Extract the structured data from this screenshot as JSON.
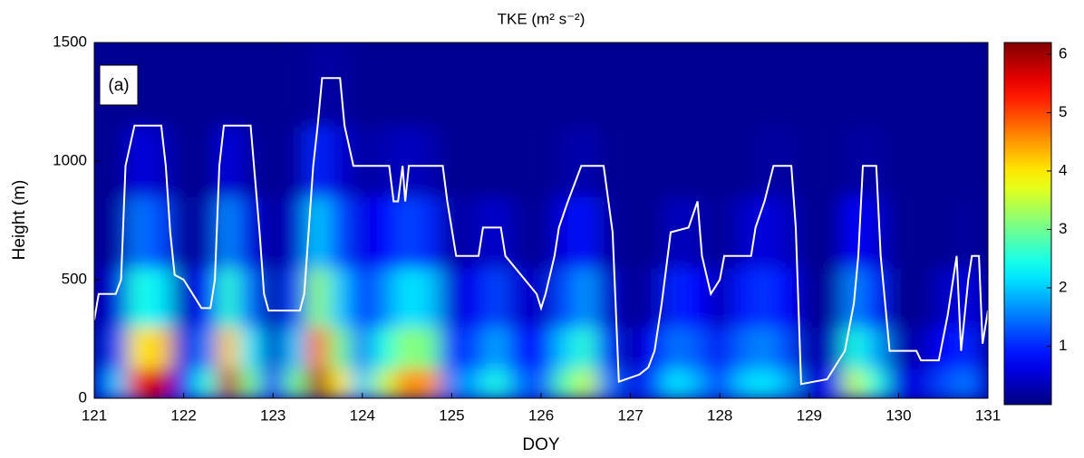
{
  "chart_data": {
    "type": "heatmap",
    "title": "TKE (m² s⁻²)",
    "xlabel": "DOY",
    "ylabel": "Height (m)",
    "annotation": "(a)",
    "colormap": "jet",
    "xlim": [
      121,
      131
    ],
    "ylim": [
      0,
      1500
    ],
    "xticks": [
      121,
      122,
      123,
      124,
      125,
      126,
      127,
      128,
      129,
      130,
      131
    ],
    "yticks": [
      0,
      500,
      1000,
      1500
    ],
    "clim": [
      0,
      6.2
    ],
    "cticks": [
      1,
      2,
      3,
      4,
      5,
      6
    ],
    "x": [
      121.0,
      121.25,
      121.5,
      121.75,
      122.0,
      122.25,
      122.5,
      122.75,
      123.0,
      123.25,
      123.5,
      123.75,
      124.0,
      124.25,
      124.5,
      124.75,
      125.0,
      125.25,
      125.5,
      125.75,
      126.0,
      126.25,
      126.5,
      126.75,
      127.0,
      127.25,
      127.5,
      127.75,
      128.0,
      128.25,
      128.5,
      128.75,
      129.0,
      129.25,
      129.5,
      129.75,
      130.0,
      130.25,
      130.5,
      130.75,
      131.0
    ],
    "y": [
      50,
      200,
      400,
      700,
      1000,
      1300
    ],
    "z": [
      [
        0.8,
        0.3,
        0.2,
        0.1,
        0.1,
        0.1
      ],
      [
        2.0,
        1.2,
        0.6,
        0.2,
        0.1,
        0.1
      ],
      [
        5.5,
        4.0,
        2.5,
        1.5,
        0.6,
        0.1
      ],
      [
        5.8,
        4.2,
        2.2,
        1.2,
        0.4,
        0.1
      ],
      [
        1.0,
        0.6,
        0.3,
        0.1,
        0.1,
        0.1
      ],
      [
        2.5,
        1.5,
        0.8,
        0.3,
        0.1,
        0.1
      ],
      [
        5.8,
        4.2,
        2.6,
        1.6,
        0.6,
        0.1
      ],
      [
        3.0,
        2.2,
        1.4,
        0.6,
        0.2,
        0.1
      ],
      [
        0.8,
        0.4,
        0.2,
        0.1,
        0.1,
        0.1
      ],
      [
        3.0,
        2.0,
        1.2,
        0.5,
        0.2,
        0.1
      ],
      [
        6.0,
        4.8,
        3.2,
        2.0,
        1.0,
        0.2
      ],
      [
        4.0,
        3.0,
        2.0,
        1.2,
        0.5,
        0.2
      ],
      [
        2.0,
        1.5,
        1.0,
        0.6,
        0.2,
        0.1
      ],
      [
        3.5,
        2.5,
        1.6,
        0.8,
        0.3,
        0.1
      ],
      [
        4.6,
        3.2,
        2.2,
        1.2,
        0.4,
        0.1
      ],
      [
        4.5,
        3.0,
        2.0,
        1.0,
        0.3,
        0.1
      ],
      [
        1.5,
        1.0,
        0.5,
        0.2,
        0.1,
        0.1
      ],
      [
        1.8,
        1.2,
        0.7,
        0.3,
        0.1,
        0.1
      ],
      [
        2.5,
        1.8,
        1.2,
        0.5,
        0.1,
        0.1
      ],
      [
        1.5,
        1.0,
        0.5,
        0.2,
        0.1,
        0.1
      ],
      [
        1.2,
        0.8,
        0.4,
        0.1,
        0.1,
        0.1
      ],
      [
        2.8,
        2.0,
        1.2,
        0.6,
        0.2,
        0.1
      ],
      [
        3.5,
        2.6,
        1.7,
        0.9,
        0.3,
        0.1
      ],
      [
        1.5,
        1.0,
        0.5,
        0.2,
        0.1,
        0.1
      ],
      [
        0.6,
        0.2,
        0.1,
        0.1,
        0.1,
        0.1
      ],
      [
        1.2,
        0.8,
        0.3,
        0.1,
        0.1,
        0.1
      ],
      [
        2.2,
        1.5,
        1.0,
        0.4,
        0.1,
        0.1
      ],
      [
        1.8,
        1.3,
        0.8,
        0.3,
        0.1,
        0.1
      ],
      [
        1.0,
        0.7,
        0.3,
        0.1,
        0.1,
        0.1
      ],
      [
        2.0,
        1.4,
        0.9,
        0.4,
        0.1,
        0.1
      ],
      [
        2.2,
        1.6,
        1.1,
        0.6,
        0.2,
        0.1
      ],
      [
        1.8,
        1.2,
        0.8,
        0.4,
        0.2,
        0.1
      ],
      [
        0.4,
        0.2,
        0.1,
        0.1,
        0.1,
        0.1
      ],
      [
        0.8,
        0.4,
        0.2,
        0.1,
        0.1,
        0.1
      ],
      [
        3.5,
        2.5,
        1.6,
        0.8,
        0.2,
        0.1
      ],
      [
        2.5,
        1.8,
        1.0,
        0.5,
        0.2,
        0.1
      ],
      [
        0.6,
        0.3,
        0.1,
        0.1,
        0.1,
        0.1
      ],
      [
        0.6,
        0.3,
        0.1,
        0.1,
        0.1,
        0.1
      ],
      [
        1.2,
        0.8,
        0.4,
        0.1,
        0.1,
        0.1
      ],
      [
        1.5,
        1.0,
        0.6,
        0.2,
        0.1,
        0.1
      ],
      [
        0.8,
        0.5,
        0.3,
        0.1,
        0.1,
        0.1
      ]
    ],
    "line": {
      "color": "#ffffff",
      "x": [
        121.0,
        121.05,
        121.24,
        121.3,
        121.35,
        121.45,
        121.75,
        121.8,
        121.85,
        121.9,
        122.0,
        122.1,
        122.2,
        122.3,
        122.35,
        122.4,
        122.45,
        122.75,
        122.85,
        122.9,
        122.95,
        123.3,
        123.35,
        123.45,
        123.5,
        123.55,
        123.75,
        123.8,
        123.9,
        124.3,
        124.35,
        124.4,
        124.45,
        124.48,
        124.52,
        124.9,
        124.95,
        125.05,
        125.3,
        125.35,
        125.55,
        125.6,
        125.95,
        126.0,
        126.05,
        126.15,
        126.2,
        126.3,
        126.45,
        126.7,
        126.8,
        126.87,
        127.1,
        127.2,
        127.27,
        127.35,
        127.45,
        127.65,
        127.75,
        127.8,
        127.9,
        128.0,
        128.05,
        128.35,
        128.4,
        128.5,
        128.6,
        128.8,
        128.85,
        128.91,
        129.2,
        129.4,
        129.5,
        129.55,
        129.6,
        129.75,
        129.8,
        129.9,
        130.2,
        130.25,
        130.45,
        130.55,
        130.65,
        130.7,
        130.78,
        130.82,
        130.9,
        130.94,
        131.0
      ],
      "values": [
        330,
        440,
        440,
        500,
        980,
        1150,
        1150,
        980,
        700,
        520,
        500,
        440,
        380,
        380,
        500,
        980,
        1150,
        1150,
        700,
        440,
        370,
        370,
        440,
        980,
        1150,
        1350,
        1350,
        1150,
        980,
        980,
        830,
        830,
        980,
        830,
        980,
        980,
        830,
        600,
        600,
        720,
        720,
        600,
        440,
        380,
        440,
        600,
        720,
        830,
        980,
        980,
        700,
        70,
        100,
        130,
        200,
        400,
        700,
        720,
        830,
        600,
        440,
        500,
        600,
        600,
        720,
        830,
        980,
        980,
        720,
        60,
        80,
        200,
        400,
        600,
        980,
        980,
        600,
        200,
        200,
        160,
        160,
        350,
        600,
        200,
        500,
        600,
        600,
        230,
        370
      ]
    }
  }
}
